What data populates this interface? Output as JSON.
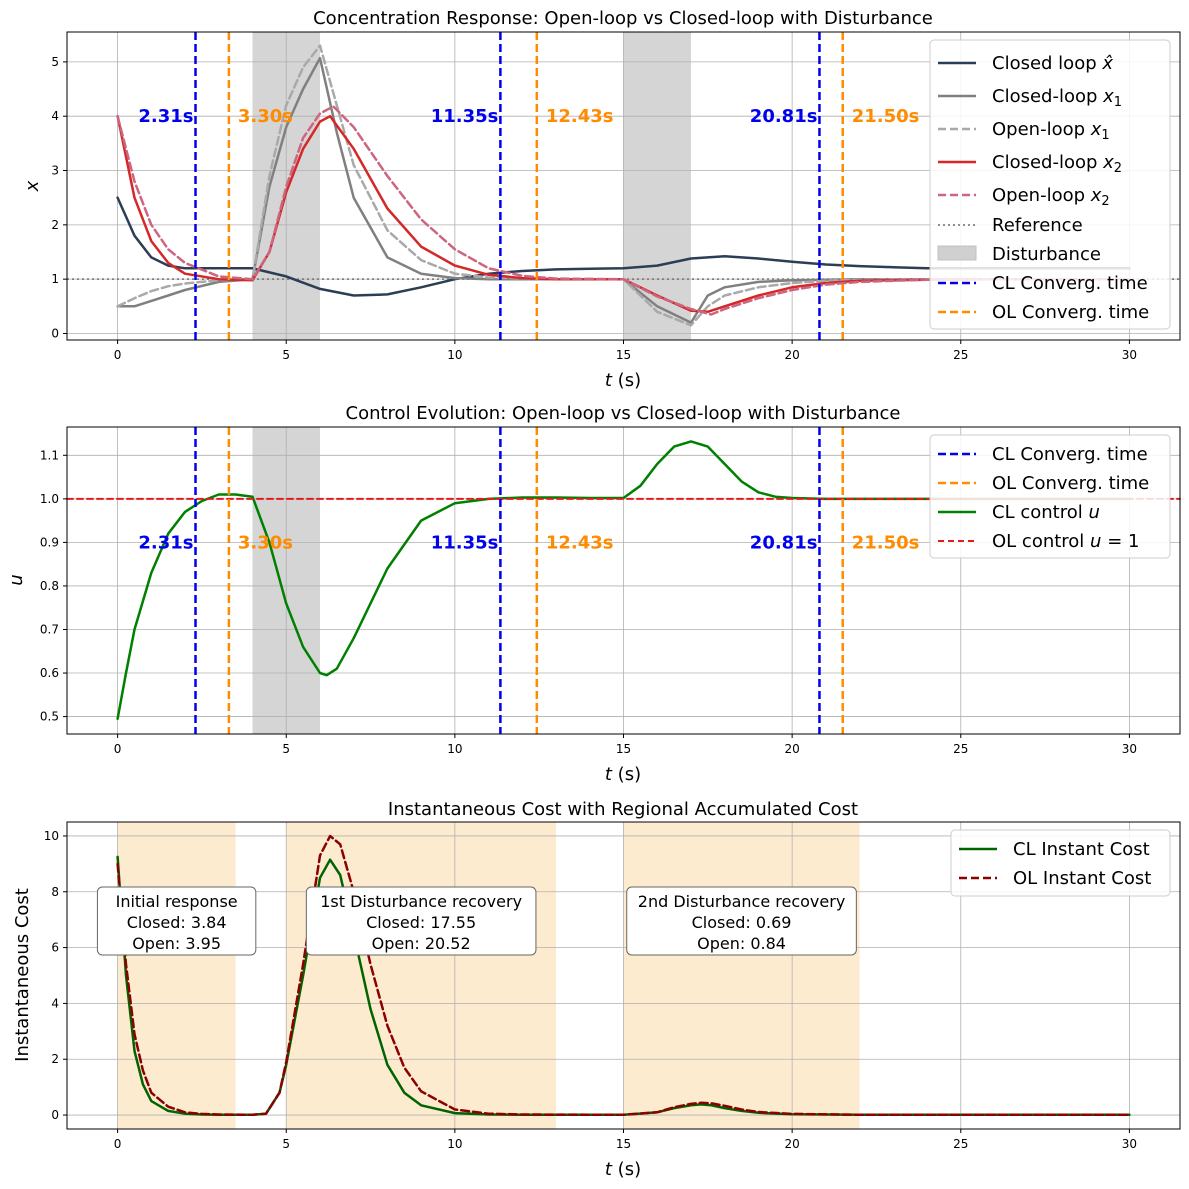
{
  "chart_data": [
    {
      "type": "line",
      "title": "Concentration Response: Open-loop vs Closed-loop with Disturbance",
      "xlabel": "t (s)",
      "ylabel": "x",
      "xlim": [
        -1.5,
        31.5
      ],
      "ylim": [
        -0.12,
        5.55
      ],
      "xticks": [
        0,
        5,
        10,
        15,
        20,
        25,
        30
      ],
      "yticks": [
        0,
        1,
        2,
        3,
        4,
        5
      ],
      "grid": true,
      "legend_position": "top-right",
      "disturbance_spans": [
        [
          4,
          6
        ],
        [
          15,
          17
        ]
      ],
      "reference": 1,
      "cl_convergence": [
        2.31,
        11.35,
        20.81
      ],
      "ol_convergence": [
        3.3,
        12.43,
        21.5
      ],
      "cl_convergence_labels": [
        "2.31s",
        "11.35s",
        "20.81s"
      ],
      "ol_convergence_labels": [
        "3.30s",
        "12.43s",
        "21.50s"
      ],
      "series": [
        {
          "name": "Closed loop x̂",
          "color": "#2c3e55",
          "dash": "solid",
          "x": [
            0,
            0.5,
            1,
            1.5,
            2,
            3,
            4,
            5,
            6,
            7,
            8,
            9,
            10,
            11,
            12,
            13,
            14,
            15,
            16,
            17,
            18,
            19,
            20,
            21,
            22,
            23,
            24,
            25,
            26,
            27,
            28,
            29,
            30
          ],
          "y": [
            2.5,
            1.8,
            1.4,
            1.25,
            1.2,
            1.2,
            1.2,
            1.05,
            0.82,
            0.7,
            0.72,
            0.85,
            1.0,
            1.1,
            1.15,
            1.18,
            1.19,
            1.2,
            1.25,
            1.38,
            1.42,
            1.38,
            1.32,
            1.27,
            1.24,
            1.22,
            1.2,
            1.2,
            1.2,
            1.2,
            1.2,
            1.2,
            1.2
          ]
        },
        {
          "name": "Closed-loop x₁",
          "color": "#808080",
          "dash": "solid",
          "x": [
            0,
            0.5,
            1,
            1.5,
            2,
            3,
            4,
            4.5,
            5,
            5.5,
            6,
            6.5,
            7,
            8,
            9,
            10,
            11,
            13,
            15,
            16,
            17,
            17.5,
            18,
            19,
            20,
            21,
            22,
            24,
            26,
            28,
            30
          ],
          "y": [
            0.5,
            0.5,
            0.6,
            0.7,
            0.8,
            0.95,
            1.0,
            2.7,
            3.8,
            4.5,
            5.07,
            3.7,
            2.5,
            1.4,
            1.1,
            1.02,
            1.0,
            1.0,
            1.0,
            0.5,
            0.2,
            0.7,
            0.85,
            0.95,
            0.98,
            0.99,
            1.0,
            1.0,
            1.0,
            1.0,
            1.0
          ]
        },
        {
          "name": "Open-loop x₁",
          "color": "#a9a9a9",
          "dash": "dashed",
          "x": [
            0,
            0.5,
            1,
            1.5,
            2,
            3,
            4,
            4.5,
            5,
            5.5,
            6,
            6.5,
            7,
            8,
            9,
            10,
            11,
            13,
            15,
            16,
            17,
            17.5,
            18,
            19,
            20,
            21,
            22,
            24,
            26,
            28,
            30
          ],
          "y": [
            0.5,
            0.65,
            0.78,
            0.87,
            0.92,
            0.98,
            1.0,
            2.9,
            4.2,
            4.9,
            5.3,
            4.2,
            3.1,
            1.9,
            1.35,
            1.1,
            1.03,
            1.0,
            1.0,
            0.4,
            0.15,
            0.5,
            0.7,
            0.85,
            0.93,
            0.97,
            0.99,
            1.0,
            1.0,
            1.0,
            1.0
          ]
        },
        {
          "name": "Closed-loop x₂",
          "color": "#d62728",
          "dash": "solid",
          "x": [
            0,
            0.5,
            1,
            1.5,
            2,
            3,
            4,
            4.5,
            5,
            5.5,
            6,
            6.3,
            7,
            8,
            9,
            10,
            11,
            12,
            13,
            15,
            16,
            17,
            17.5,
            18,
            19,
            20,
            21,
            22,
            24,
            26,
            28,
            30
          ],
          "y": [
            4.0,
            2.5,
            1.7,
            1.3,
            1.1,
            1.0,
            0.98,
            1.5,
            2.6,
            3.4,
            3.9,
            4.0,
            3.4,
            2.3,
            1.6,
            1.25,
            1.08,
            1.02,
            1.0,
            1.0,
            0.7,
            0.42,
            0.4,
            0.5,
            0.7,
            0.85,
            0.93,
            0.97,
            0.99,
            1.0,
            1.0,
            1.0
          ]
        },
        {
          "name": "Open-loop x₂",
          "color": "#cc6680",
          "dash": "dashed",
          "x": [
            0,
            0.5,
            1,
            1.5,
            2,
            3,
            4,
            4.5,
            5,
            5.5,
            6,
            6.4,
            7,
            8,
            9,
            10,
            11,
            12,
            13,
            15,
            16,
            17,
            17.6,
            18,
            19,
            20,
            21,
            22,
            24,
            26,
            28,
            30
          ],
          "y": [
            4.0,
            2.8,
            2.0,
            1.55,
            1.3,
            1.05,
            1.0,
            1.5,
            2.7,
            3.6,
            4.05,
            4.18,
            3.8,
            2.9,
            2.1,
            1.55,
            1.2,
            1.06,
            1.01,
            1.0,
            0.68,
            0.45,
            0.35,
            0.45,
            0.65,
            0.8,
            0.9,
            0.95,
            0.99,
            1.0,
            1.0,
            1.0
          ]
        }
      ],
      "legend": [
        "Closed loop x̂",
        "Closed-loop x₁",
        "Open-loop x₁",
        "Closed-loop x₂",
        "Open-loop x₂",
        "Reference",
        "Disturbance",
        "CL Converg. time",
        "OL Converg. time"
      ]
    },
    {
      "type": "line",
      "title": "Control Evolution: Open-loop vs Closed-loop with Disturbance",
      "xlabel": "t (s)",
      "ylabel": "u",
      "xlim": [
        -1.5,
        31.5
      ],
      "ylim": [
        0.46,
        1.165
      ],
      "xticks": [
        0,
        5,
        10,
        15,
        20,
        25,
        30
      ],
      "yticks": [
        0.5,
        0.6,
        0.7,
        0.8,
        0.9,
        1.0,
        1.1
      ],
      "grid": true,
      "legend_position": "top-right",
      "disturbance_spans": [
        [
          4,
          6
        ]
      ],
      "cl_convergence": [
        2.31,
        11.35,
        20.81
      ],
      "ol_convergence": [
        3.3,
        12.43,
        21.5
      ],
      "cl_convergence_labels": [
        "2.31s",
        "11.35s",
        "20.81s"
      ],
      "ol_convergence_labels": [
        "3.30s",
        "12.43s",
        "21.50s"
      ],
      "series": [
        {
          "name": "CL control u",
          "color": "#008000",
          "dash": "solid",
          "x": [
            0,
            0.25,
            0.5,
            1,
            1.5,
            2,
            2.5,
            3,
            3.5,
            4,
            4.5,
            5,
            5.5,
            6,
            6.2,
            6.5,
            7,
            8,
            9,
            10,
            11,
            12,
            13,
            14,
            15,
            15.5,
            16,
            16.5,
            17,
            17.5,
            18,
            18.5,
            19,
            19.5,
            20,
            21,
            22,
            24,
            26,
            28,
            30
          ],
          "y": [
            0.495,
            0.6,
            0.7,
            0.83,
            0.92,
            0.97,
            0.995,
            1.01,
            1.01,
            1.005,
            0.9,
            0.76,
            0.66,
            0.6,
            0.595,
            0.61,
            0.68,
            0.84,
            0.95,
            0.99,
            1.0,
            1.003,
            1.003,
            1.002,
            1.002,
            1.03,
            1.08,
            1.12,
            1.132,
            1.12,
            1.08,
            1.04,
            1.015,
            1.005,
            1.002,
            1.0,
            1.0,
            1.0,
            1.0,
            1.0,
            1.0
          ]
        },
        {
          "name": "OL control u = 1",
          "color": "#e41a1c",
          "dash": "dashed",
          "x": [
            -1.5,
            31.5
          ],
          "y": [
            1.0,
            1.0
          ]
        }
      ],
      "legend": [
        "CL Converg. time",
        "OL Converg. time",
        "CL control u",
        "OL control u = 1"
      ]
    },
    {
      "type": "line",
      "title": "Instantaneous Cost with Regional Accumulated Cost",
      "xlabel": "t (s)",
      "ylabel": "Instantaneous Cost",
      "xlim": [
        -1.5,
        31.5
      ],
      "ylim": [
        -0.5,
        10.5
      ],
      "xticks": [
        0,
        5,
        10,
        15,
        20,
        25,
        30
      ],
      "yticks": [
        0,
        2,
        4,
        6,
        8,
        10
      ],
      "grid": true,
      "legend_position": "top-right",
      "regions": [
        {
          "range": [
            0,
            3.5
          ],
          "label": "Initial response",
          "closed": "Closed: 3.84",
          "open": "Open: 3.95"
        },
        {
          "range": [
            5,
            13
          ],
          "label": "1st Disturbance recovery",
          "closed": "Closed: 17.55",
          "open": "Open: 20.52"
        },
        {
          "range": [
            15,
            22
          ],
          "label": "2nd Disturbance recovery",
          "closed": "Closed: 0.69",
          "open": "Open: 0.84"
        }
      ],
      "series": [
        {
          "name": "CL Instant Cost",
          "color": "#006400",
          "dash": "solid",
          "x": [
            0,
            0.25,
            0.5,
            0.75,
            1,
            1.5,
            2,
            2.5,
            3,
            4,
            4.4,
            4.8,
            5,
            5.5,
            6,
            6.3,
            6.6,
            7,
            7.5,
            8,
            8.5,
            9,
            10,
            11,
            12,
            15,
            16,
            16.5,
            17,
            17.3,
            17.6,
            18,
            18.5,
            19,
            20,
            22,
            25,
            30
          ],
          "y": [
            9.25,
            5.0,
            2.3,
            1.1,
            0.5,
            0.15,
            0.05,
            0.02,
            0.01,
            0.01,
            0.05,
            0.8,
            1.8,
            5.0,
            8.5,
            9.15,
            8.6,
            6.5,
            3.8,
            1.8,
            0.8,
            0.35,
            0.07,
            0.02,
            0.01,
            0.01,
            0.1,
            0.25,
            0.35,
            0.38,
            0.35,
            0.25,
            0.15,
            0.08,
            0.03,
            0.01,
            0.01,
            0.01
          ]
        },
        {
          "name": "OL Instant Cost",
          "color": "#8b0000",
          "dash": "dashed",
          "x": [
            0,
            0.25,
            0.5,
            0.75,
            1,
            1.5,
            2,
            2.5,
            3,
            4,
            4.4,
            4.8,
            5,
            5.5,
            6,
            6.3,
            6.6,
            7,
            7.5,
            8,
            8.5,
            9,
            10,
            11,
            12,
            15,
            16,
            16.5,
            17,
            17.3,
            17.6,
            18,
            18.5,
            19,
            20,
            22,
            25,
            30
          ],
          "y": [
            9.0,
            5.4,
            2.9,
            1.6,
            0.8,
            0.3,
            0.1,
            0.04,
            0.02,
            0.01,
            0.05,
            0.8,
            1.9,
            5.4,
            9.3,
            10.0,
            9.7,
            8.0,
            5.4,
            3.2,
            1.7,
            0.85,
            0.2,
            0.05,
            0.02,
            0.01,
            0.1,
            0.28,
            0.4,
            0.44,
            0.42,
            0.33,
            0.2,
            0.11,
            0.04,
            0.01,
            0.01,
            0.01
          ]
        }
      ],
      "legend": [
        "CL Instant Cost",
        "OL Instant Cost"
      ]
    }
  ],
  "colors": {
    "cl_vline": "#0000ee",
    "ol_vline": "#ff8c00",
    "disturbance": "#d0d0d0",
    "region": "#fdebd0",
    "reference": "#808080",
    "grid": "#b0b0b0"
  }
}
